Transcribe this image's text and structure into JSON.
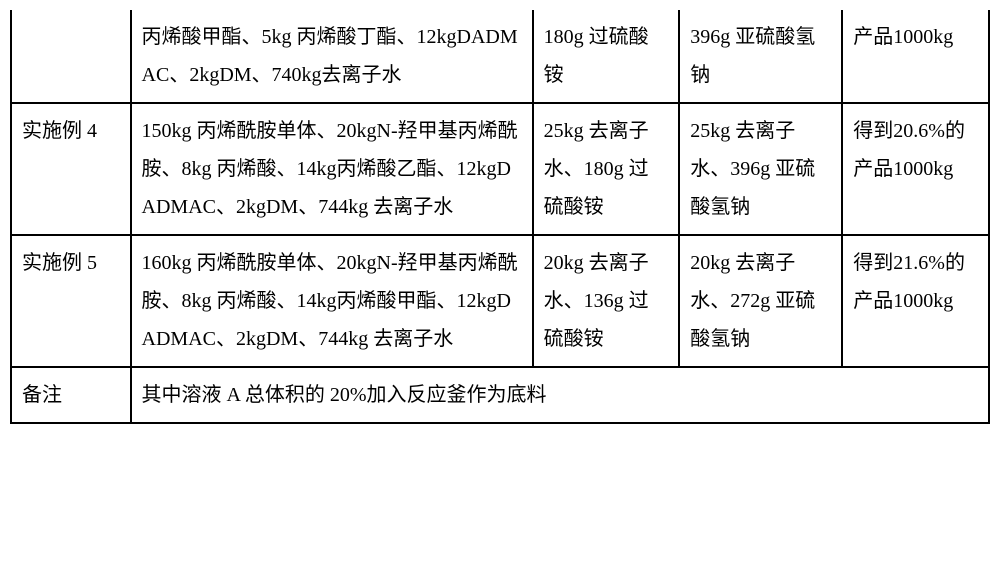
{
  "table": {
    "rows": [
      {
        "c0": "",
        "c1": "丙烯酸甲酯、5kg 丙烯酸丁酯、12kgDADMAC、2kgDM、740kg去离子水",
        "c2": "180g 过硫酸铵",
        "c3": "396g 亚硫酸氢钠",
        "c4": "产品1000kg",
        "cont": true
      },
      {
        "c0": "实施例 4",
        "c1": "150kg 丙烯酰胺单体、20kgN-羟甲基丙烯酰胺、8kg 丙烯酸、14kg丙烯酸乙酯、12kgDADMAC、2kgDM、744kg 去离子水",
        "c2": "25kg 去离子水、180g 过硫酸铵",
        "c3": "25kg 去离子水、396g 亚硫酸氢钠",
        "c4": "得到20.6%的产品1000kg",
        "cont": false
      },
      {
        "c0": "实施例 5",
        "c1": "160kg 丙烯酰胺单体、20kgN-羟甲基丙烯酰胺、8kg 丙烯酸、14kg丙烯酸甲酯、12kgDADMAC、2kgDM、744kg 去离子水",
        "c2": "20kg 去离子水、136g 过硫酸铵",
        "c3": "20kg 去离子水、272g 亚硫酸氢钠",
        "c4": "得到21.6%的产品1000kg",
        "cont": false
      }
    ],
    "footer": {
      "label": "备注",
      "text": "其中溶液 A 总体积的 20%加入反应釜作为底料"
    }
  }
}
